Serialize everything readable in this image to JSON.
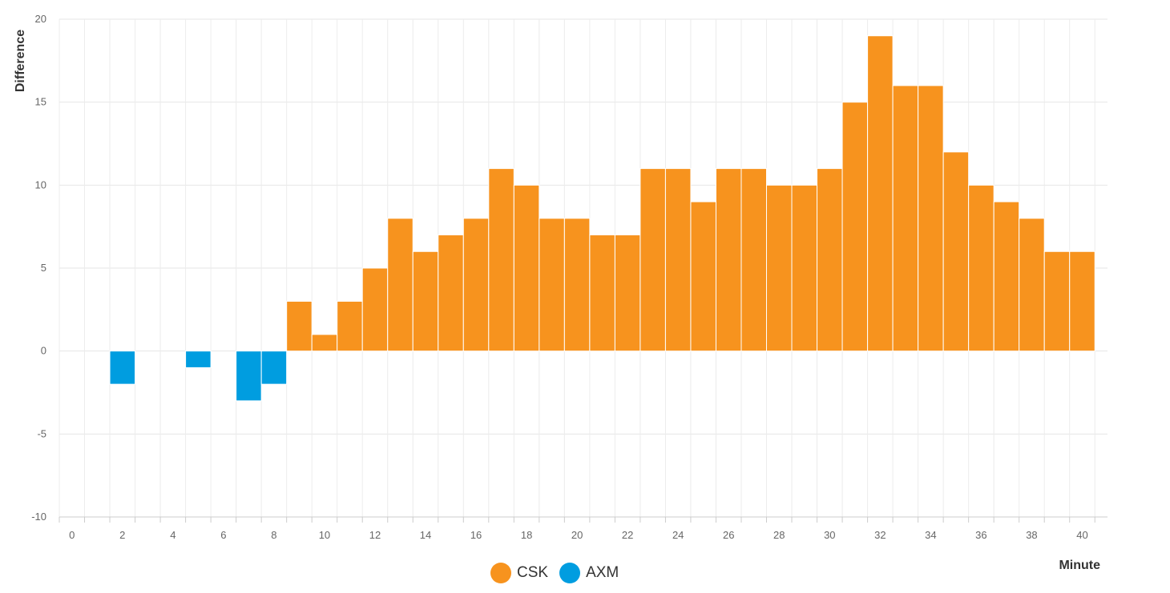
{
  "chart_data": {
    "type": "bar",
    "xlabel": "Minute",
    "ylabel": "Difference",
    "xlim": [
      0,
      40
    ],
    "ylim": [
      -10,
      20
    ],
    "x_ticks": [
      0,
      2,
      4,
      6,
      8,
      10,
      12,
      14,
      16,
      18,
      20,
      22,
      24,
      26,
      28,
      30,
      32,
      34,
      36,
      38,
      40
    ],
    "y_ticks": [
      -10,
      -5,
      0,
      5,
      10,
      15,
      20
    ],
    "grid": true,
    "legend_position": "bottom-center",
    "series": [
      {
        "name": "CSK",
        "color": "#F7931E",
        "points": [
          {
            "x": 9,
            "y": 3
          },
          {
            "x": 10,
            "y": 1
          },
          {
            "x": 11,
            "y": 3
          },
          {
            "x": 12,
            "y": 5
          },
          {
            "x": 13,
            "y": 8
          },
          {
            "x": 14,
            "y": 6
          },
          {
            "x": 15,
            "y": 7
          },
          {
            "x": 16,
            "y": 8
          },
          {
            "x": 17,
            "y": 11
          },
          {
            "x": 18,
            "y": 10
          },
          {
            "x": 19,
            "y": 8
          },
          {
            "x": 20,
            "y": 8
          },
          {
            "x": 21,
            "y": 7
          },
          {
            "x": 22,
            "y": 7
          },
          {
            "x": 23,
            "y": 11
          },
          {
            "x": 24,
            "y": 11
          },
          {
            "x": 25,
            "y": 9
          },
          {
            "x": 26,
            "y": 11
          },
          {
            "x": 27,
            "y": 11
          },
          {
            "x": 28,
            "y": 10
          },
          {
            "x": 29,
            "y": 10
          },
          {
            "x": 30,
            "y": 11
          },
          {
            "x": 31,
            "y": 15
          },
          {
            "x": 32,
            "y": 19
          },
          {
            "x": 33,
            "y": 16
          },
          {
            "x": 34,
            "y": 16
          },
          {
            "x": 35,
            "y": 12
          },
          {
            "x": 36,
            "y": 10
          },
          {
            "x": 37,
            "y": 9
          },
          {
            "x": 38,
            "y": 8
          },
          {
            "x": 39,
            "y": 6
          },
          {
            "x": 40,
            "y": 6
          }
        ]
      },
      {
        "name": "AXM",
        "color": "#009DE0",
        "points": [
          {
            "x": 2,
            "y": -2
          },
          {
            "x": 5,
            "y": -1
          },
          {
            "x": 7,
            "y": -3
          },
          {
            "x": 8,
            "y": -2
          }
        ]
      }
    ]
  }
}
